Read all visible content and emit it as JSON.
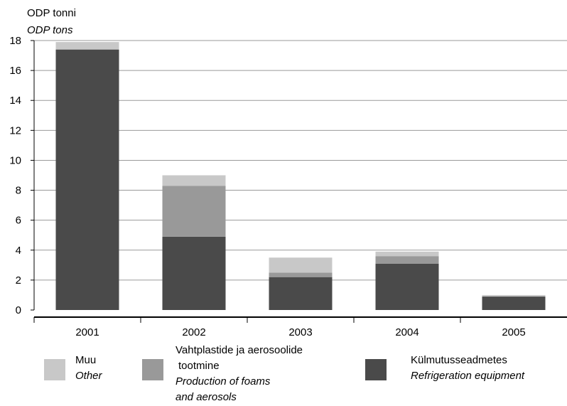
{
  "chart_data": {
    "type": "bar",
    "stacked": true,
    "unit_label": "ODP tonni",
    "unit_label_en": "ODP tons",
    "categories": [
      "2001",
      "2002",
      "2003",
      "2004",
      "2005"
    ],
    "series": [
      {
        "name": "Külmutusseadmetes",
        "name_en": "Refrigeration equipment",
        "color": "#4a4a4a",
        "values": [
          17.4,
          4.9,
          2.2,
          3.1,
          0.9
        ]
      },
      {
        "name": "Vahtplastide ja aerosoolide tootmine",
        "name_en": "Production of foams and aerosols",
        "color": "#999999",
        "values": [
          0.0,
          3.4,
          0.3,
          0.5,
          0.0
        ]
      },
      {
        "name": "Muu",
        "name_en": "Other",
        "color": "#c8c8c8",
        "values": [
          0.5,
          0.7,
          1.0,
          0.3,
          0.1
        ]
      }
    ],
    "ylim": [
      0,
      18
    ],
    "yticks": [
      0,
      2,
      4,
      6,
      8,
      10,
      12,
      14,
      16,
      18
    ],
    "grid": true
  },
  "legend": {
    "other": {
      "et": "Muu",
      "en": "Other"
    },
    "foams": {
      "et_line1": "Vahtplastide ja aerosoolide",
      "et_line2": "tootmine",
      "en_line1": "Production of foams",
      "en_line2": "and aerosols"
    },
    "refrigeration": {
      "et": "Külmutusseadmetes",
      "en": "Refrigeration equipment"
    }
  }
}
